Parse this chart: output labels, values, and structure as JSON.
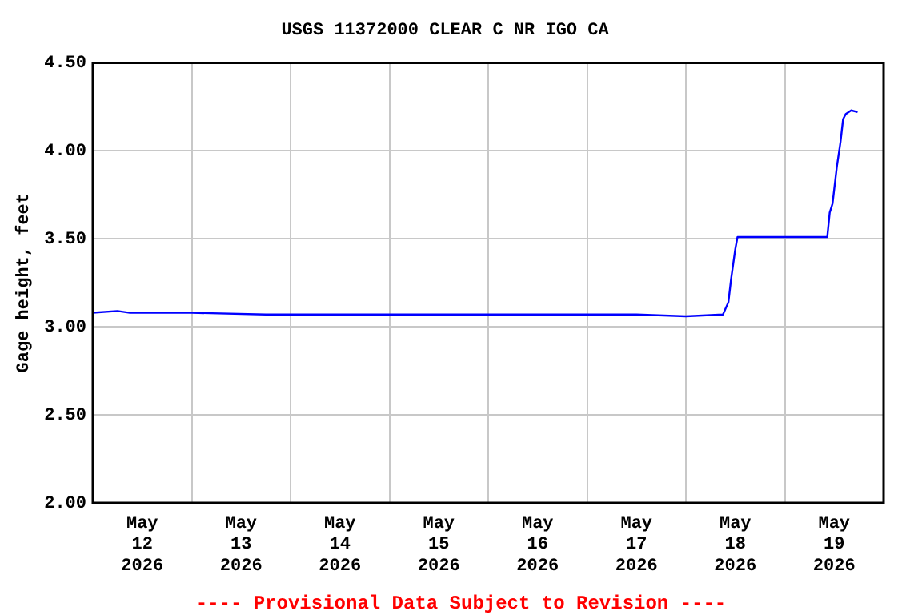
{
  "chart_data": {
    "type": "line",
    "title": "USGS 11372000 CLEAR C NR IGO CA",
    "ylabel": "Gage height, feet",
    "annotations": [
      "---- Provisional Data Subject to Revision ----"
    ],
    "x": [
      "2026-05-12T00:00",
      "2026-05-12T06:00",
      "2026-05-12T09:00",
      "2026-05-13T00:00",
      "2026-05-13T18:00",
      "2026-05-14T12:00",
      "2026-05-15T12:00",
      "2026-05-16T12:00",
      "2026-05-17T12:00",
      "2026-05-18T00:00",
      "2026-05-18T09:00",
      "2026-05-18T10:19",
      "2026-05-18T10:58",
      "2026-05-18T11:59",
      "2026-05-18T12:32",
      "2026-05-19T10:19",
      "2026-05-19T10:55",
      "2026-05-19T11:36",
      "2026-05-19T12:39",
      "2026-05-19T13:32",
      "2026-05-19T14:10",
      "2026-05-19T14:50",
      "2026-05-19T16:08",
      "2026-05-19T17:41"
    ],
    "series": [
      {
        "color": "#0000ff",
        "values": [
          3.08,
          3.09,
          3.08,
          3.08,
          3.07,
          3.07,
          3.07,
          3.07,
          3.07,
          3.06,
          3.07,
          3.14,
          3.27,
          3.44,
          3.51,
          3.51,
          3.65,
          3.7,
          3.91,
          4.05,
          4.18,
          4.21,
          4.23,
          4.22
        ]
      }
    ],
    "xlim": [
      "2026-05-12T00:00",
      "2026-05-20T00:00"
    ],
    "xticks": [
      {
        "value": "2026-05-12T12:00",
        "label": "May 12 2026"
      },
      {
        "value": "2026-05-13T00:00",
        "label": null
      },
      {
        "value": "2026-05-13T12:00",
        "label": "May 13 2026"
      },
      {
        "value": "2026-05-14T00:00",
        "label": null
      },
      {
        "value": "2026-05-14T12:00",
        "label": "May 14 2026"
      },
      {
        "value": "2026-05-15T00:00",
        "label": null
      },
      {
        "value": "2026-05-15T12:00",
        "label": "May 15 2026"
      },
      {
        "value": "2026-05-16T00:00",
        "label": null
      },
      {
        "value": "2026-05-16T12:00",
        "label": "May 16 2026"
      },
      {
        "value": "2026-05-17T00:00",
        "label": null
      },
      {
        "value": "2026-05-17T12:00",
        "label": "May 17 2026"
      },
      {
        "value": "2026-05-18T00:00",
        "label": null
      },
      {
        "value": "2026-05-18T12:00",
        "label": "May 18 2026"
      },
      {
        "value": "2026-05-19T00:00",
        "label": null
      },
      {
        "value": "2026-05-19T12:00",
        "label": "May 19 2026"
      }
    ],
    "ylim": [
      2,
      4.5
    ],
    "yticks": [
      {
        "value": 2,
        "label": "2.00"
      },
      {
        "value": 2.5,
        "label": "2.50"
      },
      {
        "value": 3,
        "label": "3.00"
      },
      {
        "value": 3.5,
        "label": "3.50"
      },
      {
        "value": 4,
        "label": "4.00"
      },
      {
        "value": 4.5,
        "label": "4.50"
      }
    ],
    "grid": true,
    "legend": false,
    "marker": "none",
    "line_style": "solid"
  }
}
